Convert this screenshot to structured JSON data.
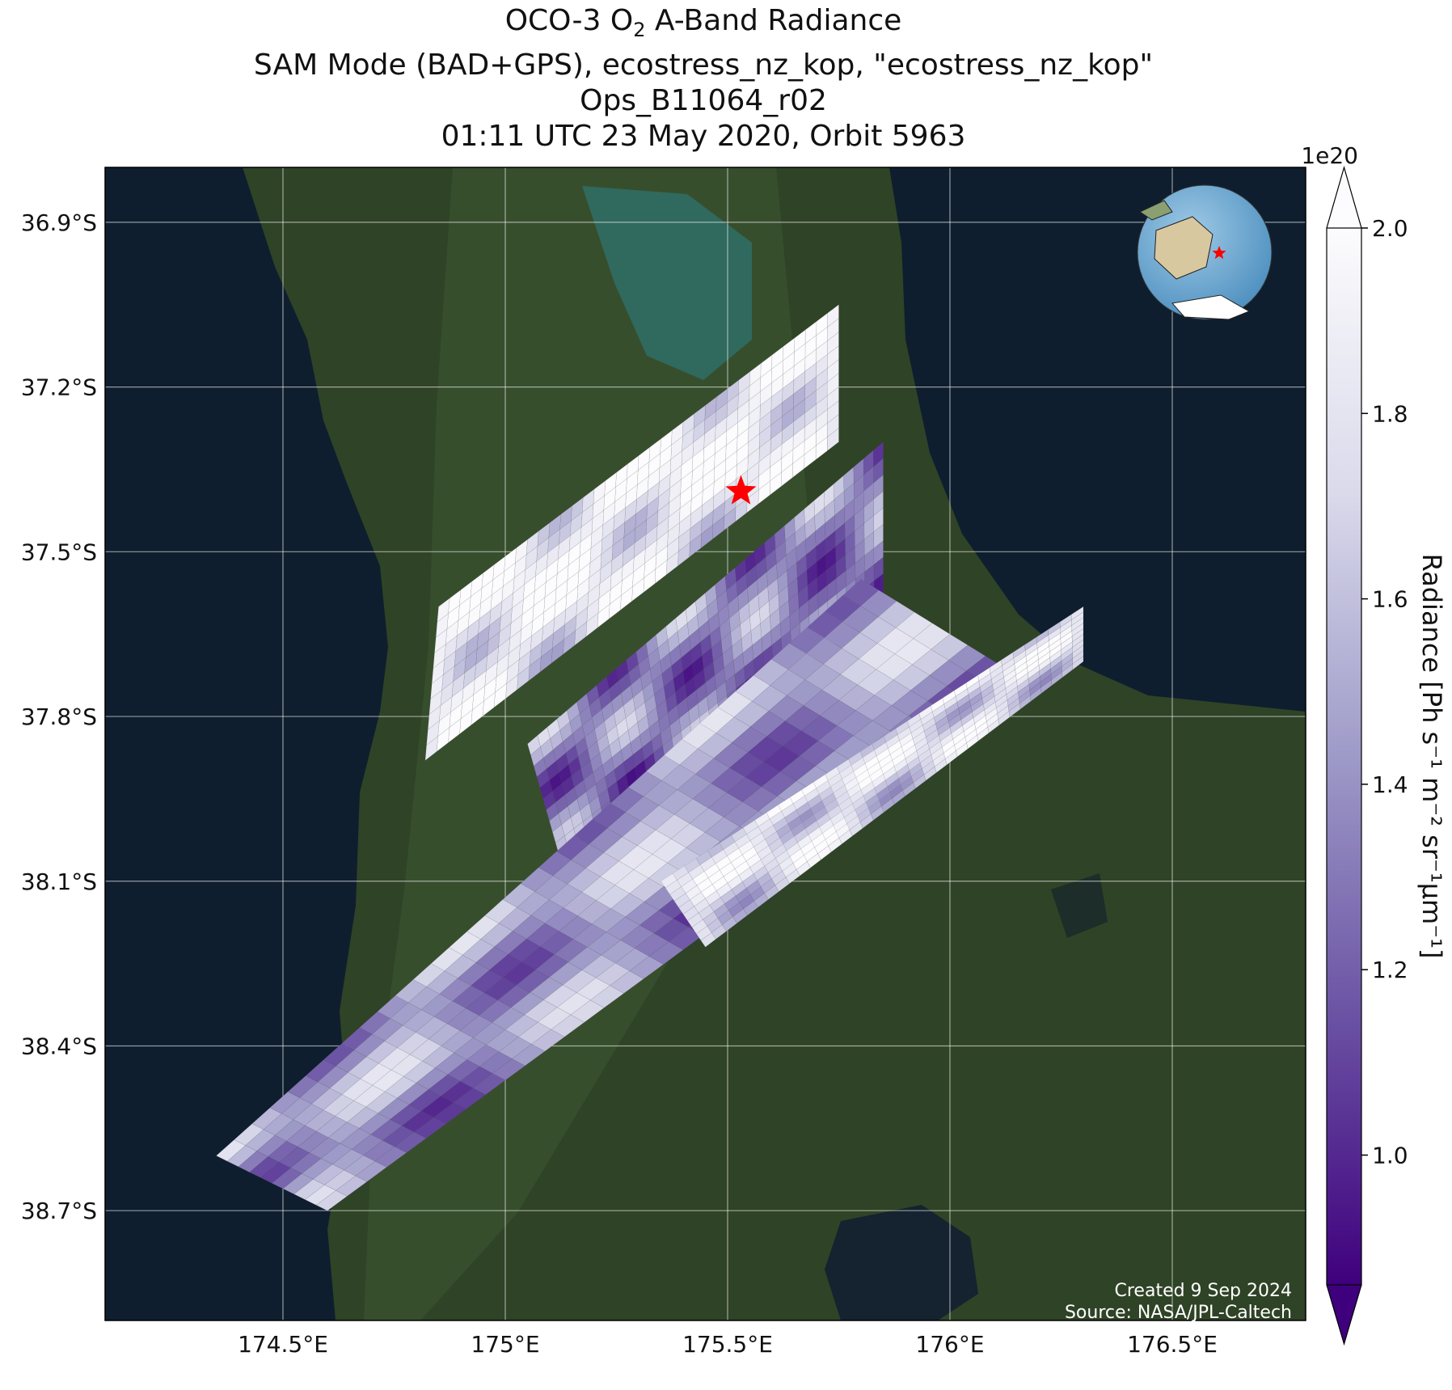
{
  "title": {
    "line1_prefix": "OCO-3 O",
    "line1_sub": "2",
    "line1_suffix": " A-Band Radiance",
    "line2": "SAM Mode (BAD+GPS), ecostress_nz_kop, \"ecostress_nz_kop\"",
    "line3": "Ops_B11064_r02",
    "line4": "01:11 UTC 23 May 2020, Orbit 5963"
  },
  "map": {
    "lon_range": [
      174.1,
      176.8
    ],
    "lat_range": [
      -38.9,
      -36.8
    ],
    "lat_ticks": [
      {
        "value": -36.9,
        "label": "36.9°S"
      },
      {
        "value": -37.2,
        "label": "37.2°S"
      },
      {
        "value": -37.5,
        "label": "37.5°S"
      },
      {
        "value": -37.8,
        "label": "37.8°S"
      },
      {
        "value": -38.1,
        "label": "38.1°S"
      },
      {
        "value": -38.4,
        "label": "38.4°S"
      },
      {
        "value": -38.7,
        "label": "38.7°S"
      }
    ],
    "lon_ticks": [
      {
        "value": 174.5,
        "label": "174.5°E"
      },
      {
        "value": 175.0,
        "label": "175°E"
      },
      {
        "value": 175.5,
        "label": "175.5°E"
      },
      {
        "value": 176.0,
        "label": "176°E"
      },
      {
        "value": 176.5,
        "label": "176.5°E"
      }
    ],
    "target_marker": {
      "lon": 175.53,
      "lat": -37.39,
      "color": "#ff0000",
      "icon": "star-icon"
    },
    "grid": true,
    "background": "satellite imagery",
    "inset_globe": {
      "placement": "top-right",
      "icon": "globe-icon"
    }
  },
  "swaths": [
    {
      "name": "swath-1",
      "corners": [
        [
          174.85,
          -37.6
        ],
        [
          175.75,
          -37.05
        ],
        [
          175.75,
          -37.3
        ],
        [
          174.82,
          -37.88
        ]
      ],
      "level": 0.95
    },
    {
      "name": "swath-2",
      "corners": [
        [
          175.05,
          -37.85
        ],
        [
          175.85,
          -37.3
        ],
        [
          175.85,
          -37.6
        ],
        [
          175.12,
          -38.05
        ]
      ],
      "level": 0.45
    },
    {
      "name": "swath-3",
      "corners": [
        [
          174.35,
          -38.6
        ],
        [
          175.8,
          -37.55
        ],
        [
          176.2,
          -37.75
        ],
        [
          174.6,
          -38.7
        ]
      ],
      "level": 0.55
    },
    {
      "name": "swath-4",
      "corners": [
        [
          175.35,
          -38.1
        ],
        [
          176.3,
          -37.6
        ],
        [
          176.3,
          -37.7
        ],
        [
          175.45,
          -38.22
        ]
      ],
      "level": 0.85
    }
  ],
  "colorbar": {
    "label": "Radiance [Ph s⁻¹ m⁻² sr⁻¹μm⁻¹]",
    "multiplier": "1e20",
    "range": [
      0.86,
      2.0
    ],
    "ticks": [
      {
        "value": 1.0,
        "label": "1.0"
      },
      {
        "value": 1.2,
        "label": "1.2"
      },
      {
        "value": 1.4,
        "label": "1.4"
      },
      {
        "value": 1.6,
        "label": "1.6"
      },
      {
        "value": 1.8,
        "label": "1.8"
      },
      {
        "value": 2.0,
        "label": "2.0"
      }
    ],
    "colors": [
      "#3f007d",
      "#6a51a3",
      "#9e9ac8",
      "#dadaeb",
      "#fcfbfd"
    ]
  },
  "credits": {
    "created": "Created 9 Sep 2024",
    "source": "Source: NASA/JPL-Caltech"
  }
}
